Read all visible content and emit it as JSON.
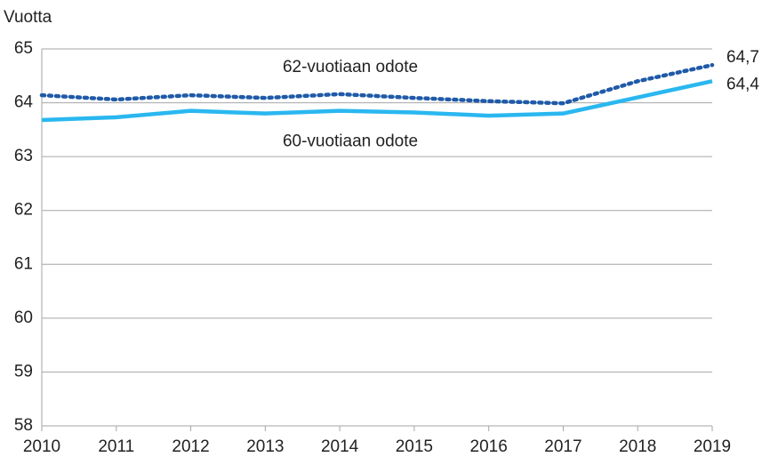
{
  "chart_data": {
    "type": "line",
    "y_axis_label": "Vuotta",
    "categories": [
      "2010",
      "2011",
      "2012",
      "2013",
      "2014",
      "2015",
      "2016",
      "2017",
      "2018",
      "2019"
    ],
    "series": [
      {
        "name": "62-vuotiaan odote",
        "color": "#1f5aa8",
        "dashed": true,
        "values": [
          64.14,
          64.06,
          64.14,
          64.09,
          64.16,
          64.09,
          64.03,
          63.99,
          64.4,
          64.7
        ],
        "value_labels": [
          null,
          null,
          null,
          null,
          null,
          null,
          null,
          null,
          null,
          "64,7"
        ]
      },
      {
        "name": "60-vuotiaan odote",
        "color": "#2ab7f0",
        "dashed": false,
        "values": [
          63.68,
          63.73,
          63.85,
          63.8,
          63.85,
          63.82,
          63.76,
          63.8,
          64.1,
          64.4
        ],
        "value_labels": [
          null,
          null,
          null,
          null,
          null,
          null,
          null,
          null,
          null,
          "64,4"
        ]
      }
    ],
    "ylim": [
      58,
      65
    ],
    "yticks": [
      58,
      59,
      60,
      61,
      62,
      63,
      64,
      65
    ],
    "grid": true
  }
}
